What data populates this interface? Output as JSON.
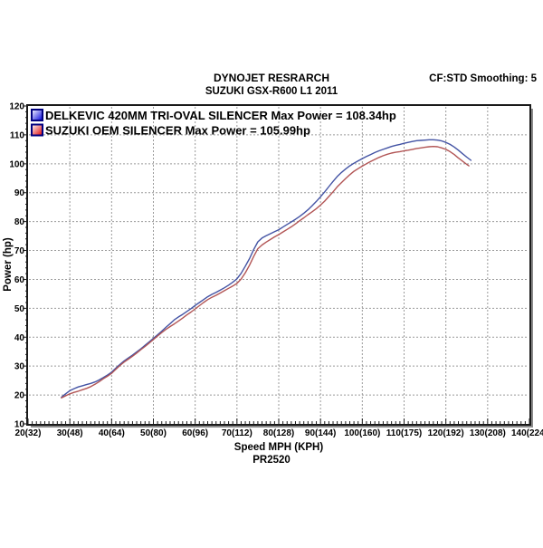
{
  "header": {
    "line1": "DYNOJET RESRARCH",
    "line2": "SUZUKI GSX-R600 L1 2011",
    "smoothing": "CF:STD Smoothing: 5"
  },
  "footer": {
    "plot_id": "PR2520"
  },
  "colors": {
    "grid": "#9a9a9a",
    "plot_border": "#1a1a1a",
    "border_shadow": "#8a8a8a",
    "legend_swatch_border": "#000080",
    "blue_line": "#4353a4",
    "red_line": "#b25555",
    "blue_swatch": "#0000dd",
    "red_swatch": "#dd0000"
  },
  "chart_data": {
    "type": "line",
    "title": "DYNOJET RESRARCH",
    "subtitle": "SUZUKI GSX-R600 L1 2011",
    "xlabel": "Speed MPH (KPH)",
    "ylabel": "Power (hp)",
    "plot_id": "PR2520",
    "xlim": [
      20,
      140
    ],
    "ylim": [
      10,
      120
    ],
    "grid": "dashed-gray",
    "legend_position": "top-left-inside",
    "x_tick_values": [
      20,
      30,
      40,
      50,
      60,
      70,
      80,
      90,
      100,
      110,
      120,
      130,
      140
    ],
    "x_tick_labels": [
      "20(32)",
      "30(48)",
      "40(64)",
      "50(80)",
      "60(96)",
      "70(112)",
      "80(128)",
      "90(144)",
      "100(160)",
      "110(175)",
      "120(192)",
      "130(208)",
      "140(224)"
    ],
    "y_tick_values": [
      10,
      20,
      30,
      40,
      50,
      60,
      70,
      80,
      90,
      100,
      110,
      120
    ],
    "series": [
      {
        "name": "DELKEVIC 420MM TRI-OVAL SILENCER",
        "legend": "DELKEVIC 420MM TRI-OVAL SILENCER Max Power = 108.34hp",
        "max_power_hp": 108.34,
        "line_color": "#4353a4",
        "swatch_color": "#0000dd",
        "points": [
          [
            28,
            19.2
          ],
          [
            29,
            20.4
          ],
          [
            30,
            21.5
          ],
          [
            31,
            22.2
          ],
          [
            32,
            22.8
          ],
          [
            33,
            23.2
          ],
          [
            34,
            23.6
          ],
          [
            35,
            24.0
          ],
          [
            36,
            24.5
          ],
          [
            37,
            25.2
          ],
          [
            38,
            26.0
          ],
          [
            39,
            26.9
          ],
          [
            40,
            27.9
          ],
          [
            41,
            29.3
          ],
          [
            42,
            30.6
          ],
          [
            43,
            31.8
          ],
          [
            44,
            32.8
          ],
          [
            45,
            33.8
          ],
          [
            46,
            34.9
          ],
          [
            47,
            36.0
          ],
          [
            48,
            37.2
          ],
          [
            49,
            38.4
          ],
          [
            50,
            39.6
          ],
          [
            51,
            40.8
          ],
          [
            52,
            42.1
          ],
          [
            53,
            43.4
          ],
          [
            54,
            44.7
          ],
          [
            55,
            46.0
          ],
          [
            56,
            47.0
          ],
          [
            57,
            47.9
          ],
          [
            58,
            48.9
          ],
          [
            59,
            49.9
          ],
          [
            60,
            51.0
          ],
          [
            61,
            52.0
          ],
          [
            62,
            53.0
          ],
          [
            63,
            54.0
          ],
          [
            64,
            54.8
          ],
          [
            65,
            55.5
          ],
          [
            66,
            56.3
          ],
          [
            67,
            57.1
          ],
          [
            68,
            58.0
          ],
          [
            69,
            59.0
          ],
          [
            70,
            60.2
          ],
          [
            71,
            62.1
          ],
          [
            72,
            64.6
          ],
          [
            73,
            67.2
          ],
          [
            74,
            70.3
          ],
          [
            75,
            73.0
          ],
          [
            76,
            74.3
          ],
          [
            77,
            75.1
          ],
          [
            78,
            75.8
          ],
          [
            79,
            76.5
          ],
          [
            80,
            77.2
          ],
          [
            81,
            78.1
          ],
          [
            82,
            79.0
          ],
          [
            83,
            79.9
          ],
          [
            84,
            80.8
          ],
          [
            85,
            81.8
          ],
          [
            86,
            82.9
          ],
          [
            87,
            84.1
          ],
          [
            88,
            85.5
          ],
          [
            89,
            87.0
          ],
          [
            90,
            88.6
          ],
          [
            91,
            90.3
          ],
          [
            92,
            92.1
          ],
          [
            93,
            93.9
          ],
          [
            94,
            95.6
          ],
          [
            95,
            97.0
          ],
          [
            96,
            98.2
          ],
          [
            97,
            99.3
          ],
          [
            98,
            100.2
          ],
          [
            99,
            101.0
          ],
          [
            100,
            101.8
          ],
          [
            101,
            102.5
          ],
          [
            102,
            103.2
          ],
          [
            103,
            103.9
          ],
          [
            104,
            104.5
          ],
          [
            105,
            105.0
          ],
          [
            106,
            105.5
          ],
          [
            107,
            106.0
          ],
          [
            108,
            106.4
          ],
          [
            109,
            106.7
          ],
          [
            110,
            107.1
          ],
          [
            111,
            107.4
          ],
          [
            112,
            107.7
          ],
          [
            113,
            108.0
          ],
          [
            114,
            108.1
          ],
          [
            115,
            108.2
          ],
          [
            116,
            108.3
          ],
          [
            117,
            108.3
          ],
          [
            118,
            108.2
          ],
          [
            119,
            107.9
          ],
          [
            120,
            107.4
          ],
          [
            121,
            106.7
          ],
          [
            122,
            105.8
          ],
          [
            123,
            104.7
          ],
          [
            124,
            103.5
          ],
          [
            125,
            102.3
          ],
          [
            126,
            101.2
          ]
        ]
      },
      {
        "name": "SUZUKI OEM SILENCER",
        "legend": "SUZUKI OEM SILENCER Max Power = 105.99hp",
        "max_power_hp": 105.99,
        "line_color": "#b25555",
        "swatch_color": "#dd0000",
        "points": [
          [
            28,
            19.0
          ],
          [
            29,
            19.7
          ],
          [
            30,
            20.4
          ],
          [
            31,
            20.9
          ],
          [
            32,
            21.3
          ],
          [
            33,
            21.8
          ],
          [
            34,
            22.3
          ],
          [
            35,
            22.9
          ],
          [
            36,
            23.7
          ],
          [
            37,
            24.6
          ],
          [
            38,
            25.6
          ],
          [
            39,
            26.5
          ],
          [
            40,
            27.5
          ],
          [
            41,
            28.9
          ],
          [
            42,
            30.2
          ],
          [
            43,
            31.4
          ],
          [
            44,
            32.4
          ],
          [
            45,
            33.4
          ],
          [
            46,
            34.5
          ],
          [
            47,
            35.7
          ],
          [
            48,
            36.8
          ],
          [
            49,
            38.0
          ],
          [
            50,
            39.2
          ],
          [
            51,
            40.4
          ],
          [
            52,
            41.6
          ],
          [
            53,
            42.7
          ],
          [
            54,
            43.7
          ],
          [
            55,
            44.6
          ],
          [
            56,
            45.6
          ],
          [
            57,
            46.6
          ],
          [
            58,
            47.7
          ],
          [
            59,
            48.7
          ],
          [
            60,
            49.8
          ],
          [
            61,
            50.9
          ],
          [
            62,
            52.0
          ],
          [
            63,
            53.0
          ],
          [
            64,
            53.8
          ],
          [
            65,
            54.5
          ],
          [
            66,
            55.3
          ],
          [
            67,
            56.1
          ],
          [
            68,
            56.9
          ],
          [
            69,
            57.7
          ],
          [
            70,
            58.6
          ],
          [
            71,
            60.1
          ],
          [
            72,
            62.3
          ],
          [
            73,
            64.9
          ],
          [
            74,
            67.9
          ],
          [
            75,
            70.6
          ],
          [
            76,
            71.9
          ],
          [
            77,
            72.9
          ],
          [
            78,
            73.8
          ],
          [
            79,
            74.7
          ],
          [
            80,
            75.5
          ],
          [
            81,
            76.4
          ],
          [
            82,
            77.3
          ],
          [
            83,
            78.2
          ],
          [
            84,
            79.2
          ],
          [
            85,
            80.3
          ],
          [
            86,
            81.3
          ],
          [
            87,
            82.4
          ],
          [
            88,
            83.4
          ],
          [
            89,
            84.5
          ],
          [
            90,
            85.7
          ],
          [
            91,
            87.1
          ],
          [
            92,
            88.7
          ],
          [
            93,
            90.3
          ],
          [
            94,
            92.0
          ],
          [
            95,
            93.5
          ],
          [
            96,
            94.9
          ],
          [
            97,
            96.2
          ],
          [
            98,
            97.4
          ],
          [
            99,
            98.3
          ],
          [
            100,
            99.2
          ],
          [
            101,
            100.0
          ],
          [
            102,
            100.8
          ],
          [
            103,
            101.5
          ],
          [
            104,
            102.2
          ],
          [
            105,
            102.8
          ],
          [
            106,
            103.3
          ],
          [
            107,
            103.7
          ],
          [
            108,
            104.0
          ],
          [
            109,
            104.2
          ],
          [
            110,
            104.5
          ],
          [
            111,
            104.7
          ],
          [
            112,
            105.0
          ],
          [
            113,
            105.3
          ],
          [
            114,
            105.5
          ],
          [
            115,
            105.7
          ],
          [
            116,
            105.9
          ],
          [
            117,
            106.0
          ],
          [
            118,
            105.9
          ],
          [
            119,
            105.5
          ],
          [
            120,
            105.0
          ],
          [
            121,
            104.2
          ],
          [
            122,
            103.2
          ],
          [
            123,
            102.0
          ],
          [
            124,
            100.9
          ],
          [
            125,
            99.8
          ],
          [
            125.5,
            99.3
          ]
        ]
      }
    ]
  }
}
